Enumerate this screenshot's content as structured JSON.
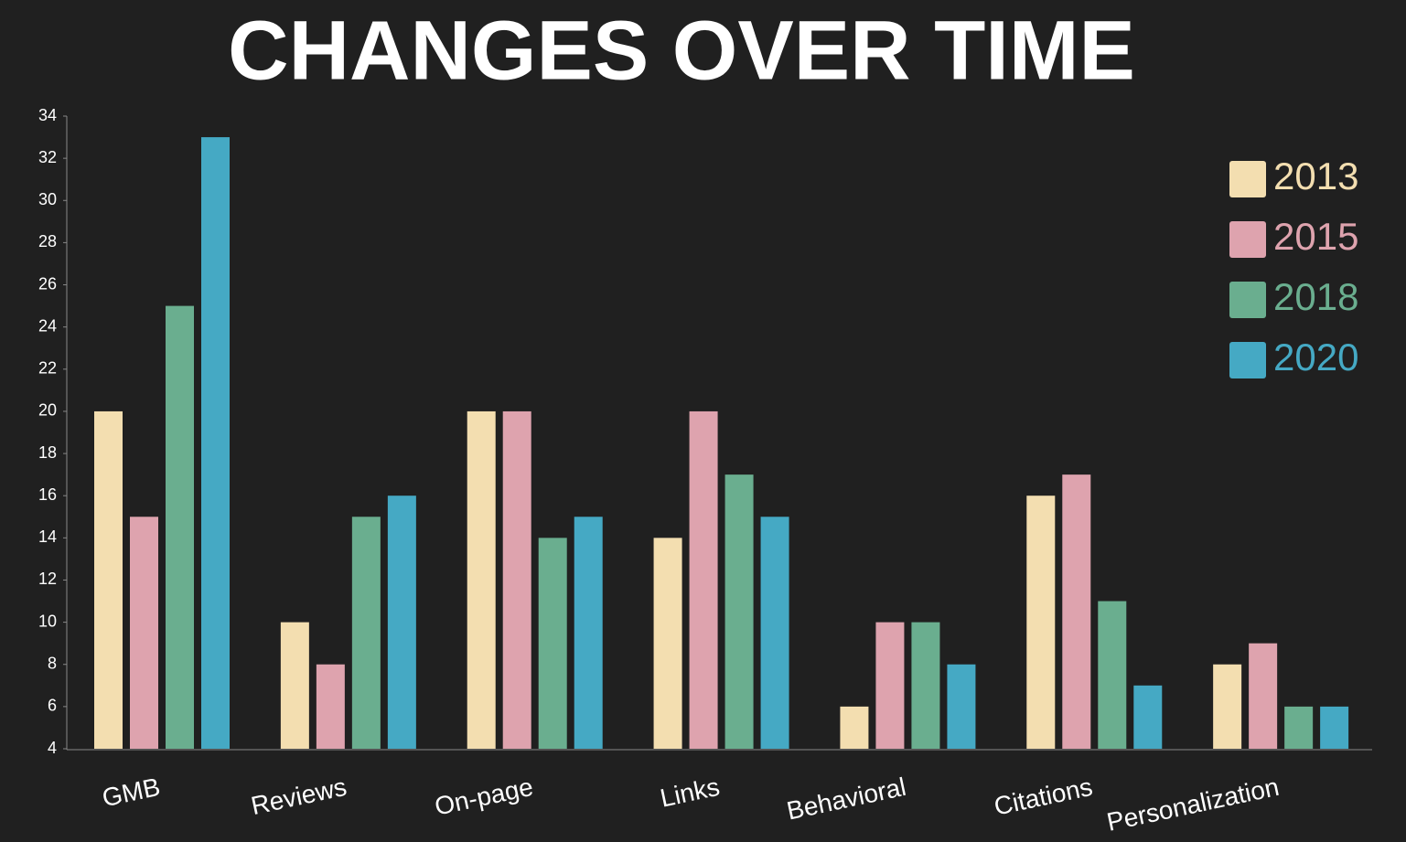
{
  "chart_data": {
    "type": "bar",
    "title": "CHANGES OVER TIME",
    "categories": [
      "GMB",
      "Reviews",
      "On-page",
      "Links",
      "Behavioral",
      "Citations",
      "Personalization"
    ],
    "series": [
      {
        "name": "2013",
        "color": "#f3deb0",
        "values": [
          20,
          10,
          20,
          14,
          6,
          16,
          8
        ]
      },
      {
        "name": "2015",
        "color": "#dea3ae",
        "values": [
          15,
          8,
          20,
          20,
          10,
          17,
          9
        ]
      },
      {
        "name": "2018",
        "color": "#6aae8f",
        "values": [
          25,
          15,
          14,
          17,
          10,
          11,
          6
        ]
      },
      {
        "name": "2020",
        "color": "#45a9c4",
        "values": [
          33,
          16,
          15,
          15,
          8,
          7,
          6
        ]
      }
    ],
    "ylim": [
      4,
      34
    ],
    "yticks": [
      4,
      6,
      8,
      10,
      12,
      14,
      16,
      18,
      20,
      22,
      24,
      26,
      28,
      30,
      32,
      34
    ],
    "legend": "top-right"
  }
}
